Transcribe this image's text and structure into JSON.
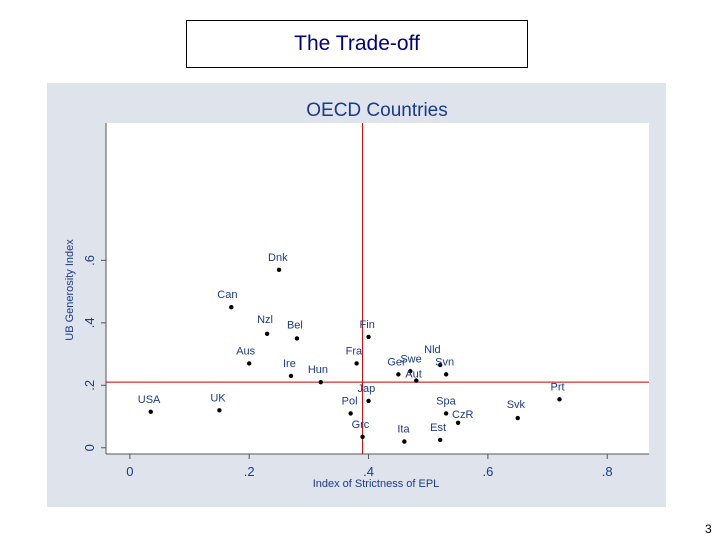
{
  "slide": {
    "title": "The Trade-off",
    "page_number": "3"
  },
  "chart_data": {
    "type": "scatter",
    "title": "OECD Countries",
    "xlabel": "Index of Strictness of EPL",
    "ylabel": "UB Generosity Index",
    "xlim": [
      -0.04,
      0.87
    ],
    "ylim": [
      -0.02,
      1.04
    ],
    "xticks": [
      0,
      0.2,
      0.4,
      0.6,
      0.8
    ],
    "xtick_labels": [
      "0",
      ".2",
      ".4",
      ".6",
      ".8"
    ],
    "yticks": [
      0,
      0.2,
      0.4,
      0.6
    ],
    "ytick_labels": [
      "0",
      ".2",
      ".4",
      ".6"
    ],
    "reference_lines": {
      "x": 0.39,
      "y": 0.21,
      "color": "#c00000"
    },
    "grid": false,
    "points": [
      {
        "label": "Dnk",
        "x": 0.25,
        "y": 0.57
      },
      {
        "label": "Can",
        "x": 0.17,
        "y": 0.45
      },
      {
        "label": "Nzl",
        "x": 0.23,
        "y": 0.365
      },
      {
        "label": "Bel",
        "x": 0.28,
        "y": 0.35
      },
      {
        "label": "Fin",
        "x": 0.4,
        "y": 0.355
      },
      {
        "label": "Aus",
        "x": 0.2,
        "y": 0.27
      },
      {
        "label": "Ire",
        "x": 0.27,
        "y": 0.23
      },
      {
        "label": "Hun",
        "x": 0.32,
        "y": 0.21
      },
      {
        "label": "Fra",
        "x": 0.38,
        "y": 0.27
      },
      {
        "label": "Ger",
        "x": 0.45,
        "y": 0.235
      },
      {
        "label": "Swe",
        "x": 0.47,
        "y": 0.245
      },
      {
        "label": "Aut",
        "x": 0.48,
        "y": 0.215
      },
      {
        "label": "Nld",
        "x": 0.52,
        "y": 0.265
      },
      {
        "label": "Svn",
        "x": 0.53,
        "y": 0.235
      },
      {
        "label": "Jap",
        "x": 0.4,
        "y": 0.15
      },
      {
        "label": "Pol",
        "x": 0.37,
        "y": 0.11
      },
      {
        "label": "Grc",
        "x": 0.39,
        "y": 0.035
      },
      {
        "label": "Ita",
        "x": 0.46,
        "y": 0.02
      },
      {
        "label": "Est",
        "x": 0.52,
        "y": 0.025
      },
      {
        "label": "Spa",
        "x": 0.53,
        "y": 0.11
      },
      {
        "label": "CzR",
        "x": 0.55,
        "y": 0.08
      },
      {
        "label": "Svk",
        "x": 0.65,
        "y": 0.095
      },
      {
        "label": "Prt",
        "x": 0.72,
        "y": 0.155
      },
      {
        "label": "USA",
        "x": 0.035,
        "y": 0.115
      },
      {
        "label": "UK",
        "x": 0.15,
        "y": 0.12
      }
    ]
  },
  "colors": {
    "panel_background": "#dfe3ec",
    "plot_background": "#ffffff",
    "title_text": "#000080",
    "reference_line": "#c00000",
    "marker": "#000000"
  }
}
